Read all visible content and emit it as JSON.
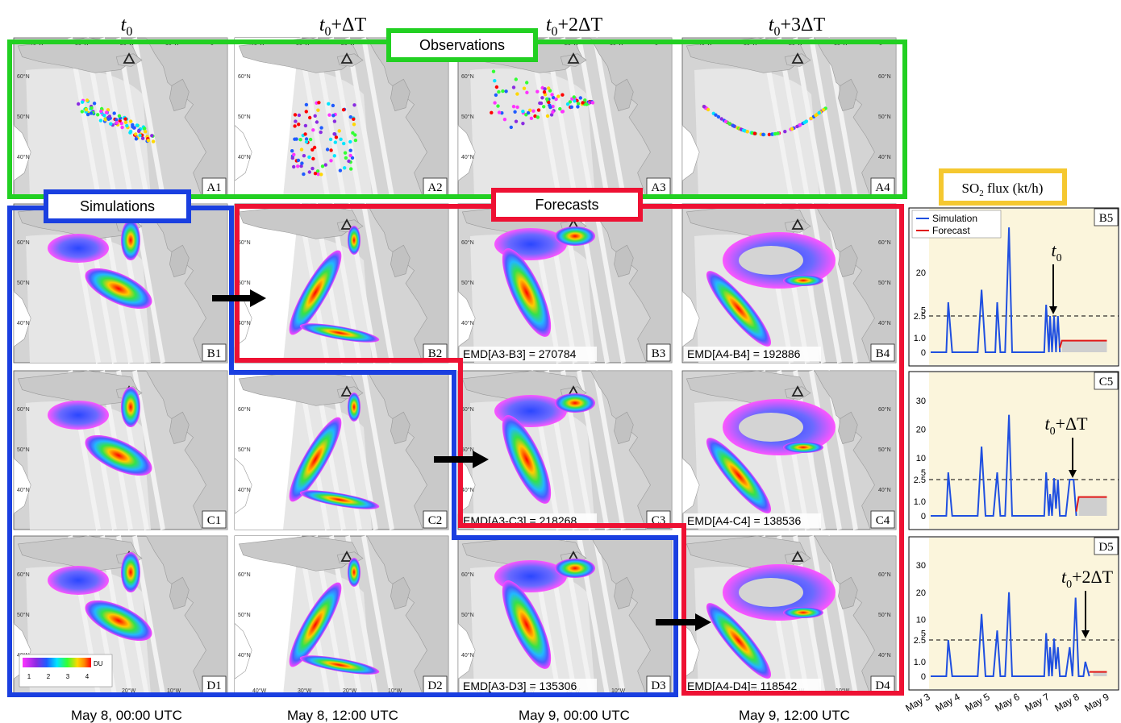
{
  "columns": {
    "headers": [
      {
        "base": "t",
        "sub": "0",
        "suffix": ""
      },
      {
        "base": "t",
        "sub": "0",
        "suffix": "+ΔT"
      },
      {
        "base": "t",
        "sub": "0",
        "suffix": "+2ΔT"
      },
      {
        "base": "t",
        "sub": "0",
        "suffix": "+3ΔT"
      }
    ],
    "dates": [
      "May 8, 00:00 UTC",
      "May 8, 12:00 UTC",
      "May 9, 00:00 UTC",
      "May 9, 12:00 UTC"
    ]
  },
  "groups": {
    "observations": "Observations",
    "simulations": "Simulations",
    "forecasts": "Forecasts",
    "flux_title": "SO",
    "flux_title_sub": "2",
    "flux_title_suffix": " flux (kt/h)"
  },
  "colors": {
    "observations": "#22d022",
    "simulations": "#1a3fe0",
    "forecasts": "#ee1133",
    "flux_border": "#f5c830",
    "sea": "#ffffff",
    "land": "#d4d4d4",
    "plot_bg": "#fbf5dc",
    "simulation_line": "#1f4fe0",
    "forecast_line": "#e01818"
  },
  "map_labels": {
    "lon_top": [
      "40°W",
      "30°W",
      "20°W",
      "10°W",
      "0°"
    ],
    "lon_bottom": [
      "40°W",
      "30°W",
      "20°W",
      "10°W"
    ],
    "lat": [
      "60°N",
      "50°N",
      "40°N"
    ]
  },
  "panels": {
    "row_A": [
      "A1",
      "A2",
      "A3",
      "A4"
    ],
    "row_B": [
      "B1",
      "B2",
      "B3",
      "B4"
    ],
    "row_C": [
      "C1",
      "C2",
      "C3",
      "C4"
    ],
    "row_D": [
      "D1",
      "D2",
      "D3",
      "D4"
    ]
  },
  "emd": {
    "B3": "EMD[A3-B3] = 270784",
    "B4": "EMD[A4-B4] = 192886",
    "C3": "EMD[A3-C3] = 218268",
    "C4": "EMD[A4-C4] = 138536",
    "D3": "EMD[A3-D3] = 135306",
    "D4": "EMD[A4-D4]= 118542"
  },
  "colorbar": {
    "unit": "DU",
    "ticks": [
      "1",
      "2",
      "3",
      "4"
    ]
  },
  "chart_data": [
    {
      "type": "line",
      "panel": "B5",
      "annotation": {
        "base": "t",
        "sub": "0",
        "suffix": ""
      },
      "yticks": [
        "0",
        "1.0",
        "2.5",
        "5",
        "20"
      ],
      "threshold": 2.5,
      "x_ticks": [
        "May 3",
        "May 4",
        "May 5",
        "May 6",
        "May 7",
        "May 8",
        "May 9"
      ],
      "series": [
        {
          "name": "Simulation",
          "points": [
            [
              0.0,
              0
            ],
            [
              0.4,
              0
            ],
            [
              0.45,
              8
            ],
            [
              0.55,
              0
            ],
            [
              1.2,
              0
            ],
            [
              1.3,
              13
            ],
            [
              1.4,
              0
            ],
            [
              1.65,
              0
            ],
            [
              1.7,
              8
            ],
            [
              1.78,
              0
            ],
            [
              1.9,
              0
            ],
            [
              2.0,
              38
            ],
            [
              2.08,
              0
            ],
            [
              2.9,
              0
            ],
            [
              2.95,
              7
            ],
            [
              3.02,
              0
            ],
            [
              3.05,
              2.5
            ],
            [
              3.1,
              0
            ],
            [
              3.15,
              2.5
            ],
            [
              3.2,
              0
            ],
            [
              3.25,
              2.5
            ],
            [
              3.3,
              0
            ]
          ]
        },
        {
          "name": "Forecast",
          "points": [
            [
              3.3,
              0.3
            ],
            [
              3.35,
              0.8
            ],
            [
              4.5,
              0.8
            ]
          ]
        }
      ],
      "legend": [
        "Simulation",
        "Forecast"
      ]
    },
    {
      "type": "line",
      "panel": "C5",
      "annotation": {
        "base": "t",
        "sub": "0",
        "suffix": "+ΔT"
      },
      "yticks": [
        "0",
        "1.0",
        "2.5",
        "5",
        "10",
        "20",
        "30"
      ],
      "threshold": 2.5,
      "series": [
        {
          "name": "Simulation",
          "points": [
            [
              0.0,
              0
            ],
            [
              0.4,
              0
            ],
            [
              0.45,
              5
            ],
            [
              0.55,
              0
            ],
            [
              1.2,
              0
            ],
            [
              1.3,
              14
            ],
            [
              1.4,
              0
            ],
            [
              1.6,
              0
            ],
            [
              1.7,
              5
            ],
            [
              1.78,
              0
            ],
            [
              1.9,
              0
            ],
            [
              2.0,
              25
            ],
            [
              2.08,
              0
            ],
            [
              2.9,
              0
            ],
            [
              2.95,
              5
            ],
            [
              3.02,
              0
            ],
            [
              3.05,
              1.5
            ],
            [
              3.1,
              0
            ],
            [
              3.15,
              3
            ],
            [
              3.2,
              0.5
            ],
            [
              3.25,
              2.5
            ],
            [
              3.3,
              0
            ],
            [
              3.45,
              0
            ],
            [
              3.55,
              2.5
            ],
            [
              3.65,
              2.5
            ],
            [
              3.72,
              0
            ]
          ]
        },
        {
          "name": "Forecast",
          "points": [
            [
              3.72,
              0.3
            ],
            [
              3.78,
              1.3
            ],
            [
              4.5,
              1.3
            ]
          ]
        }
      ]
    },
    {
      "type": "line",
      "panel": "D5",
      "annotation": {
        "base": "t",
        "sub": "0",
        "suffix": "+2ΔT"
      },
      "yticks": [
        "0",
        "1.0",
        "2.5",
        "5",
        "10",
        "20",
        "30"
      ],
      "threshold": 2.5,
      "series": [
        {
          "name": "Simulation",
          "points": [
            [
              0.0,
              0
            ],
            [
              0.4,
              0
            ],
            [
              0.45,
              2.5
            ],
            [
              0.55,
              0
            ],
            [
              1.2,
              0
            ],
            [
              1.3,
              12
            ],
            [
              1.4,
              0
            ],
            [
              1.6,
              0
            ],
            [
              1.7,
              6
            ],
            [
              1.78,
              0
            ],
            [
              1.9,
              0
            ],
            [
              2.0,
              20
            ],
            [
              2.08,
              0
            ],
            [
              2.9,
              0
            ],
            [
              2.95,
              5
            ],
            [
              3.02,
              0
            ],
            [
              3.05,
              2
            ],
            [
              3.1,
              0
            ],
            [
              3.15,
              3
            ],
            [
              3.2,
              0.5
            ],
            [
              3.25,
              2
            ],
            [
              3.3,
              0
            ],
            [
              3.45,
              0
            ],
            [
              3.55,
              2
            ],
            [
              3.62,
              0
            ],
            [
              3.7,
              18
            ],
            [
              3.78,
              0
            ],
            [
              3.9,
              0
            ],
            [
              3.95,
              1
            ],
            [
              4.05,
              0
            ]
          ]
        },
        {
          "name": "Forecast",
          "points": [
            [
              4.05,
              0.3
            ],
            [
              4.15,
              0.3
            ],
            [
              4.5,
              0.3
            ]
          ]
        }
      ]
    }
  ]
}
